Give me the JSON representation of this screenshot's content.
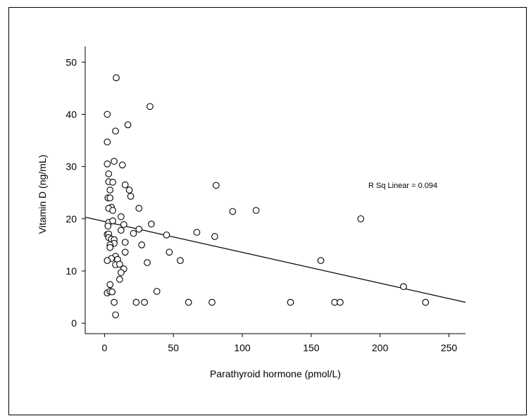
{
  "chart_data": {
    "type": "scatter",
    "title": "",
    "xlabel": "Parathyroid hormone (pmol/L)",
    "ylabel": "Vitamin D (ng/mL)",
    "xlim": [
      -14,
      262
    ],
    "ylim": [
      -2,
      53
    ],
    "xticks": [
      0,
      50,
      100,
      150,
      200,
      250
    ],
    "yticks": [
      0,
      10,
      20,
      30,
      40,
      50
    ],
    "grid": false,
    "annotation": "R Sq Linear = 0.094",
    "fit_line": {
      "x": [
        -14,
        262
      ],
      "y": [
        20.3,
        4.0
      ]
    },
    "points": [
      [
        8.5,
        47
      ],
      [
        33,
        41.5
      ],
      [
        2,
        40
      ],
      [
        17,
        38
      ],
      [
        8,
        36.8
      ],
      [
        2,
        34.7
      ],
      [
        7,
        31
      ],
      [
        2,
        30.5
      ],
      [
        13,
        30.3
      ],
      [
        3,
        28.6
      ],
      [
        3,
        27.1
      ],
      [
        6,
        27
      ],
      [
        15,
        26.5
      ],
      [
        81,
        26.4
      ],
      [
        4,
        25.5
      ],
      [
        18,
        25.5
      ],
      [
        2.5,
        24
      ],
      [
        4,
        24
      ],
      [
        19,
        24.3
      ],
      [
        5,
        22.2
      ],
      [
        3,
        22
      ],
      [
        6,
        21.6
      ],
      [
        25,
        22
      ],
      [
        93,
        21.4
      ],
      [
        110,
        21.6
      ],
      [
        12,
        20.4
      ],
      [
        186,
        20
      ],
      [
        3,
        19.3
      ],
      [
        6,
        19.6
      ],
      [
        14,
        18.9
      ],
      [
        34,
        19
      ],
      [
        2.5,
        18.6
      ],
      [
        12,
        17.8
      ],
      [
        25,
        18
      ],
      [
        2,
        17
      ],
      [
        3,
        17.1
      ],
      [
        21,
        17.2
      ],
      [
        67,
        17.4
      ],
      [
        45,
        16.9
      ],
      [
        80,
        16.6
      ],
      [
        3,
        16.4
      ],
      [
        5,
        16.1
      ],
      [
        7,
        16
      ],
      [
        7,
        15.3
      ],
      [
        15,
        15.5
      ],
      [
        4,
        15
      ],
      [
        27,
        15
      ],
      [
        4,
        14.5
      ],
      [
        15,
        13.6
      ],
      [
        47,
        13.6
      ],
      [
        8,
        12.8
      ],
      [
        5,
        12.4
      ],
      [
        2,
        12
      ],
      [
        9.5,
        12.2
      ],
      [
        55,
        12
      ],
      [
        157,
        12
      ],
      [
        8,
        11.2
      ],
      [
        11,
        11.3
      ],
      [
        31,
        11.6
      ],
      [
        14,
        10.4
      ],
      [
        12,
        9.7
      ],
      [
        11,
        8.4
      ],
      [
        4,
        7.4
      ],
      [
        217,
        7
      ],
      [
        2,
        5.8
      ],
      [
        4,
        6.1
      ],
      [
        5.5,
        6
      ],
      [
        38,
        6.1
      ],
      [
        7,
        4
      ],
      [
        23,
        4
      ],
      [
        29,
        4
      ],
      [
        61,
        4
      ],
      [
        78,
        4
      ],
      [
        135,
        4
      ],
      [
        167,
        4
      ],
      [
        171,
        4
      ],
      [
        233,
        4
      ],
      [
        8,
        1.6
      ]
    ]
  }
}
